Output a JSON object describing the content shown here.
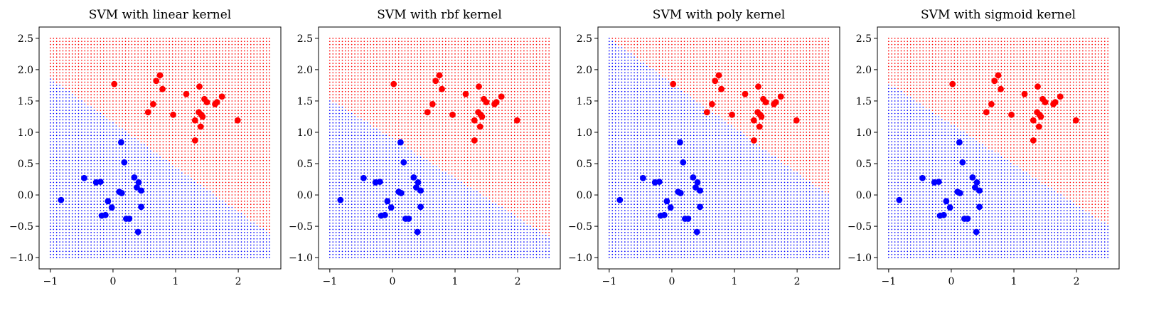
{
  "chart_data": [
    {
      "type": "scatter",
      "title": "SVM with linear kernel",
      "xlim": [
        -1.18,
        2.68
      ],
      "ylim": [
        -1.18,
        2.68
      ],
      "xticks": [
        -1,
        0,
        1,
        2
      ],
      "yticks": [
        -1.0,
        -0.5,
        0.0,
        0.5,
        1.0,
        1.5,
        2.0,
        2.5
      ],
      "grid": false,
      "decision_boundary": {
        "x": [
          -1.0,
          2.5
        ],
        "y": [
          1.87,
          -0.62
        ]
      }
    },
    {
      "type": "scatter",
      "title": "SVM with rbf kernel",
      "xlim": [
        -1.18,
        2.68
      ],
      "ylim": [
        -1.18,
        2.68
      ],
      "xticks": [
        -1,
        0,
        1,
        2
      ],
      "yticks": [
        -1.0,
        -0.5,
        0.0,
        0.5,
        1.0,
        1.5,
        2.0,
        2.5
      ],
      "grid": false,
      "decision_boundary": {
        "x": [
          -1.0,
          2.5
        ],
        "y": [
          1.53,
          -0.67
        ]
      }
    },
    {
      "type": "scatter",
      "title": "SVM with poly kernel",
      "xlim": [
        -1.18,
        2.68
      ],
      "ylim": [
        -1.18,
        2.68
      ],
      "xticks": [
        -1,
        0,
        1,
        2
      ],
      "yticks": [
        -1.0,
        -0.5,
        0.0,
        0.5,
        1.0,
        1.5,
        2.0,
        2.5
      ],
      "grid": false,
      "decision_boundary": {
        "x": [
          -1.0,
          2.5
        ],
        "y": [
          2.5,
          0.0
        ]
      }
    },
    {
      "type": "scatter",
      "title": "SVM with sigmoid kernel",
      "xlim": [
        -1.18,
        2.68
      ],
      "ylim": [
        -1.18,
        2.68
      ],
      "xticks": [
        -1,
        0,
        1,
        2
      ],
      "yticks": [
        -1.0,
        -0.5,
        0.0,
        0.5,
        1.0,
        1.5,
        2.0,
        2.5
      ],
      "grid": false,
      "decision_boundary": {
        "x": [
          -1.0,
          2.5
        ],
        "y": [
          1.78,
          -0.48
        ]
      }
    }
  ],
  "shared": {
    "colors": {
      "class_a": "#ff0000",
      "class_b": "#0000ff"
    },
    "grid_region": {
      "x": [
        -1.0,
        2.5
      ],
      "y": [
        -1.0,
        2.5
      ],
      "step": 0.05
    },
    "points_red": [
      [
        0.02,
        1.77
      ],
      [
        0.75,
        1.91
      ],
      [
        0.69,
        1.82
      ],
      [
        0.79,
        1.69
      ],
      [
        0.64,
        1.45
      ],
      [
        0.56,
        1.32
      ],
      [
        0.96,
        1.28
      ],
      [
        1.17,
        1.61
      ],
      [
        1.38,
        1.73
      ],
      [
        1.46,
        1.53
      ],
      [
        1.5,
        1.48
      ],
      [
        1.74,
        1.57
      ],
      [
        1.66,
        1.48
      ],
      [
        1.63,
        1.45
      ],
      [
        1.37,
        1.32
      ],
      [
        1.41,
        1.28
      ],
      [
        1.43,
        1.25
      ],
      [
        1.31,
        1.19
      ],
      [
        1.4,
        1.09
      ],
      [
        1.31,
        0.87
      ],
      [
        1.99,
        1.19
      ]
    ],
    "points_blue": [
      [
        0.13,
        0.84
      ],
      [
        -0.83,
        -0.08
      ],
      [
        -0.46,
        0.27
      ],
      [
        -0.27,
        0.2
      ],
      [
        -0.2,
        0.21
      ],
      [
        0.18,
        0.52
      ],
      [
        0.34,
        0.28
      ],
      [
        0.41,
        0.2
      ],
      [
        0.38,
        0.12
      ],
      [
        0.45,
        0.07
      ],
      [
        0.1,
        0.05
      ],
      [
        0.14,
        0.03
      ],
      [
        -0.08,
        -0.1
      ],
      [
        -0.02,
        -0.2
      ],
      [
        -0.18,
        -0.33
      ],
      [
        -0.12,
        -0.32
      ],
      [
        0.45,
        -0.19
      ],
      [
        0.21,
        -0.38
      ],
      [
        0.26,
        -0.38
      ],
      [
        0.4,
        -0.59
      ]
    ]
  }
}
